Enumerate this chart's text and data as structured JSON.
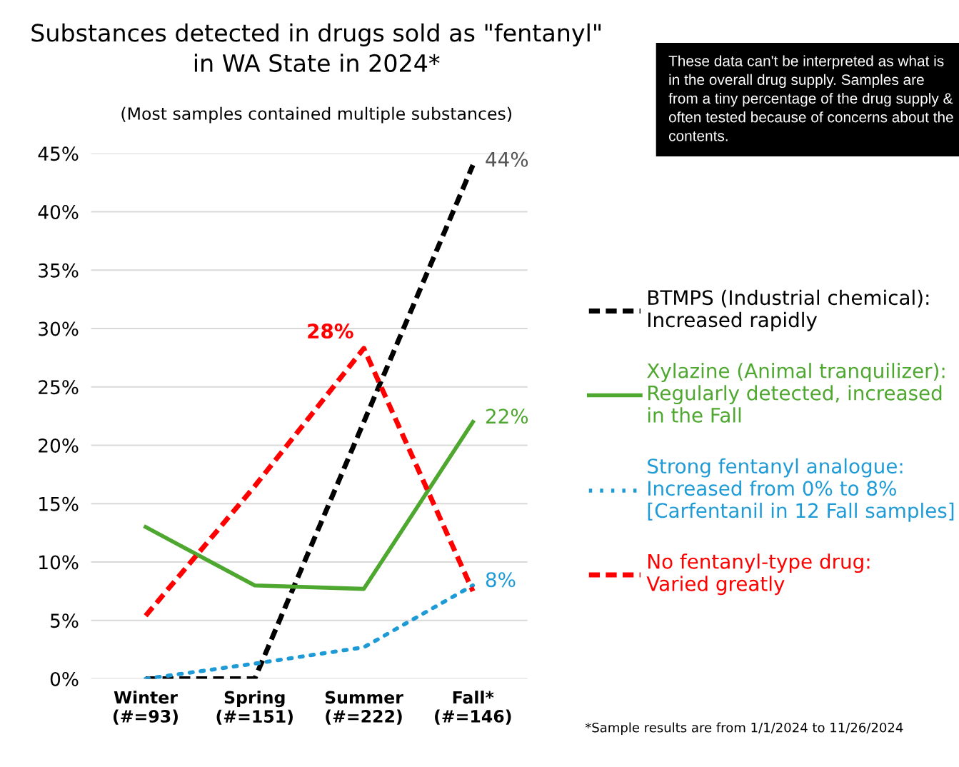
{
  "chart_data": {
    "type": "line",
    "title": "Substances detected in drugs sold as \"fentanyl\"\nin WA State in 2024*",
    "subtitle": "(Most samples contained multiple substances)",
    "categories": [
      "Winter\n(#=93)",
      "Spring\n(#=151)",
      "Summer\n(#=222)",
      "Fall*\n(#=146)"
    ],
    "series": [
      {
        "name": "BTMPS (Industrial chemical):\nIncreased rapidly",
        "color": "#000000",
        "line_style": "dashed",
        "values": [
          0,
          0,
          22,
          44
        ],
        "value_labels": [
          null,
          null,
          null,
          "44%"
        ]
      },
      {
        "name": "Xylazine (Animal tranquilizer):\nRegularly detected, increased\nin the Fall",
        "color": "#4ea72e",
        "line_style": "solid",
        "values": [
          13,
          8,
          7.7,
          22
        ],
        "value_labels": [
          null,
          null,
          null,
          "22%"
        ]
      },
      {
        "name": "Strong fentanyl analogue:\nIncreased from 0% to 8%\n[Carfentanil in 12 Fall samples]",
        "color": "#1e9bd7",
        "line_style": "dotted",
        "values": [
          0,
          1.3,
          2.7,
          8
        ],
        "value_labels": [
          null,
          null,
          null,
          "8%"
        ]
      },
      {
        "name": "No fentanyl-type drug:\nVaried greatly",
        "color": "#ff0000",
        "line_style": "dashed",
        "values": [
          5.4,
          16.5,
          28.3,
          7.5
        ],
        "value_labels": [
          null,
          null,
          "28%",
          null
        ]
      }
    ],
    "ylim": [
      0,
      45
    ],
    "yticks": [
      {
        "value": 0,
        "label": "0%"
      },
      {
        "value": 5,
        "label": "5%"
      },
      {
        "value": 10,
        "label": "10%"
      },
      {
        "value": 15,
        "label": "15%"
      },
      {
        "value": 20,
        "label": "20%"
      },
      {
        "value": 25,
        "label": "25%"
      },
      {
        "value": 30,
        "label": "30%"
      },
      {
        "value": 35,
        "label": "35%"
      },
      {
        "value": 40,
        "label": "40%"
      },
      {
        "value": 45,
        "label": "45%"
      }
    ],
    "grid": "y",
    "legend": "right",
    "annotations": [
      "These data can't be interpreted as what is in the overall drug supply. Samples are from a tiny percentage of the drug supply & often tested because of concerns about the contents.",
      "*Sample results are from 1/1/2024 to 11/26/2024"
    ]
  }
}
